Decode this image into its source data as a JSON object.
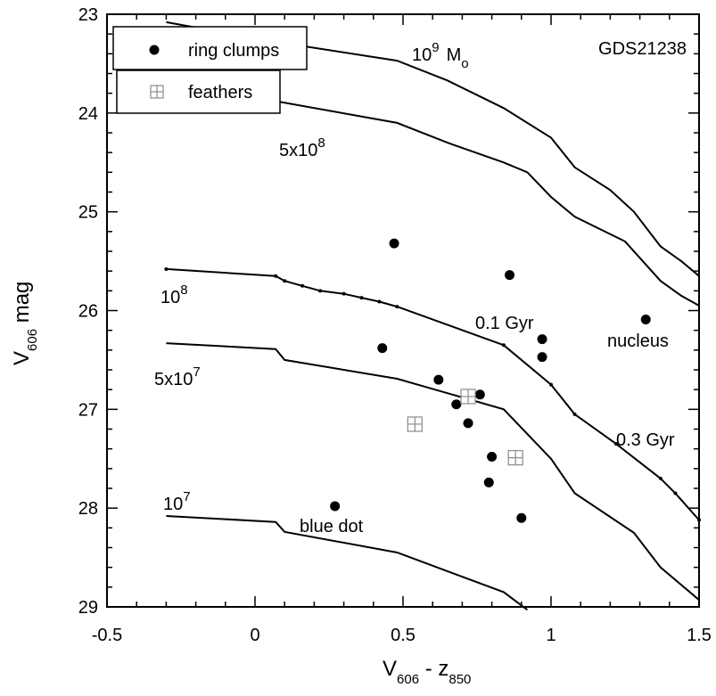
{
  "chart_data": {
    "type": "scatter",
    "title": "GDS21238",
    "xlabel": {
      "base": "V",
      "sub1": "606",
      "mid": " - z",
      "sub2": "850"
    },
    "ylabel": {
      "base": "V",
      "sub": "606",
      "tail": " mag"
    },
    "xlim": [
      -0.5,
      1.5
    ],
    "ylim": [
      29,
      23
    ],
    "y_inverted": true,
    "x_ticks": [
      -0.5,
      0,
      0.5,
      1,
      1.5
    ],
    "x_tick_labels": [
      "-0.5",
      "0",
      "0.5",
      "1",
      "1.5"
    ],
    "y_ticks": [
      23,
      24,
      25,
      26,
      27,
      28,
      29
    ],
    "y_tick_labels": [
      "23",
      "24",
      "25",
      "26",
      "27",
      "28",
      "29"
    ],
    "legend": {
      "placement": "top-left",
      "entries": [
        {
          "label": "ring clumps",
          "marker": "filled-circle"
        },
        {
          "label": "feathers",
          "marker": "boxed-plus"
        }
      ]
    },
    "series": [
      {
        "name": "ring clumps",
        "marker": "filled-circle",
        "points": [
          {
            "x": 0.47,
            "y": 25.32
          },
          {
            "x": 0.86,
            "y": 25.64
          },
          {
            "x": 1.32,
            "y": 26.09
          },
          {
            "x": 0.97,
            "y": 26.29
          },
          {
            "x": 0.43,
            "y": 26.38
          },
          {
            "x": 0.97,
            "y": 26.47
          },
          {
            "x": 0.62,
            "y": 26.7
          },
          {
            "x": 0.76,
            "y": 26.85
          },
          {
            "x": 0.68,
            "y": 26.95
          },
          {
            "x": 0.72,
            "y": 27.14
          },
          {
            "x": 0.8,
            "y": 27.48
          },
          {
            "x": 0.79,
            "y": 27.74
          },
          {
            "x": 0.27,
            "y": 27.98
          },
          {
            "x": 0.9,
            "y": 28.1
          }
        ]
      },
      {
        "name": "feathers",
        "marker": "boxed-plus",
        "points": [
          {
            "x": 0.54,
            "y": 27.15
          },
          {
            "x": 0.72,
            "y": 26.87
          },
          {
            "x": 0.88,
            "y": 27.49
          }
        ]
      }
    ],
    "model_tracks": [
      {
        "mass_label": "10^9 Mo",
        "dotted": false,
        "points": [
          [
            -0.3,
            23.08
          ],
          [
            0.07,
            23.28
          ],
          [
            0.48,
            23.47
          ],
          [
            0.65,
            23.67
          ],
          [
            0.84,
            23.95
          ],
          [
            1.0,
            24.25
          ],
          [
            1.08,
            24.55
          ],
          [
            1.2,
            24.78
          ],
          [
            1.28,
            25.0
          ],
          [
            1.37,
            25.35
          ],
          [
            1.44,
            25.5
          ],
          [
            1.5,
            25.65
          ]
        ]
      },
      {
        "mass_label": "5x10^8",
        "dotted": false,
        "points": [
          [
            -0.3,
            23.74
          ],
          [
            0.07,
            23.88
          ],
          [
            0.48,
            24.1
          ],
          [
            0.65,
            24.3
          ],
          [
            0.84,
            24.5
          ],
          [
            0.92,
            24.6
          ],
          [
            1.0,
            24.85
          ],
          [
            1.08,
            25.05
          ],
          [
            1.25,
            25.3
          ],
          [
            1.37,
            25.7
          ],
          [
            1.44,
            25.85
          ],
          [
            1.5,
            25.95
          ]
        ]
      },
      {
        "mass_label": "10^8",
        "dotted": true,
        "points": [
          [
            -0.3,
            25.58
          ],
          [
            0.07,
            25.65
          ],
          [
            0.1,
            25.7
          ],
          [
            0.16,
            25.75
          ],
          [
            0.22,
            25.8
          ],
          [
            0.3,
            25.83
          ],
          [
            0.36,
            25.87
          ],
          [
            0.42,
            25.91
          ],
          [
            0.48,
            25.96
          ],
          [
            0.84,
            26.35
          ],
          [
            1.0,
            26.75
          ],
          [
            1.08,
            27.05
          ],
          [
            1.22,
            27.35
          ],
          [
            1.37,
            27.7
          ],
          [
            1.42,
            27.85
          ],
          [
            1.5,
            28.12
          ]
        ]
      },
      {
        "mass_label": "5x10^7",
        "dotted": false,
        "points": [
          [
            -0.3,
            26.33
          ],
          [
            0.07,
            26.39
          ],
          [
            0.1,
            26.5
          ],
          [
            0.48,
            26.69
          ],
          [
            0.84,
            27.0
          ],
          [
            1.0,
            27.5
          ],
          [
            1.08,
            27.85
          ],
          [
            1.28,
            28.25
          ],
          [
            1.37,
            28.6
          ],
          [
            1.5,
            28.93
          ]
        ]
      },
      {
        "mass_label": "10^7",
        "dotted": false,
        "points": [
          [
            -0.3,
            28.08
          ],
          [
            0.07,
            28.14
          ],
          [
            0.1,
            28.24
          ],
          [
            0.48,
            28.45
          ],
          [
            0.84,
            28.85
          ],
          [
            0.92,
            29.03
          ]
        ]
      }
    ],
    "annotations": {
      "mass_1e9": {
        "base": "10",
        "exp": "9",
        "unit": "M",
        "unit_sub": "o"
      },
      "mass_5e8": {
        "base": "5x10",
        "exp": "8"
      },
      "mass_1e8": {
        "base": "10",
        "exp": "8"
      },
      "mass_5e7": {
        "base": "5x10",
        "exp": "7"
      },
      "mass_1e7": {
        "base": "10",
        "exp": "7"
      },
      "age_01": "0.1 Gyr",
      "age_03": "0.3 Gyr",
      "nucleus": "nucleus",
      "blue_dot": "blue dot"
    }
  }
}
